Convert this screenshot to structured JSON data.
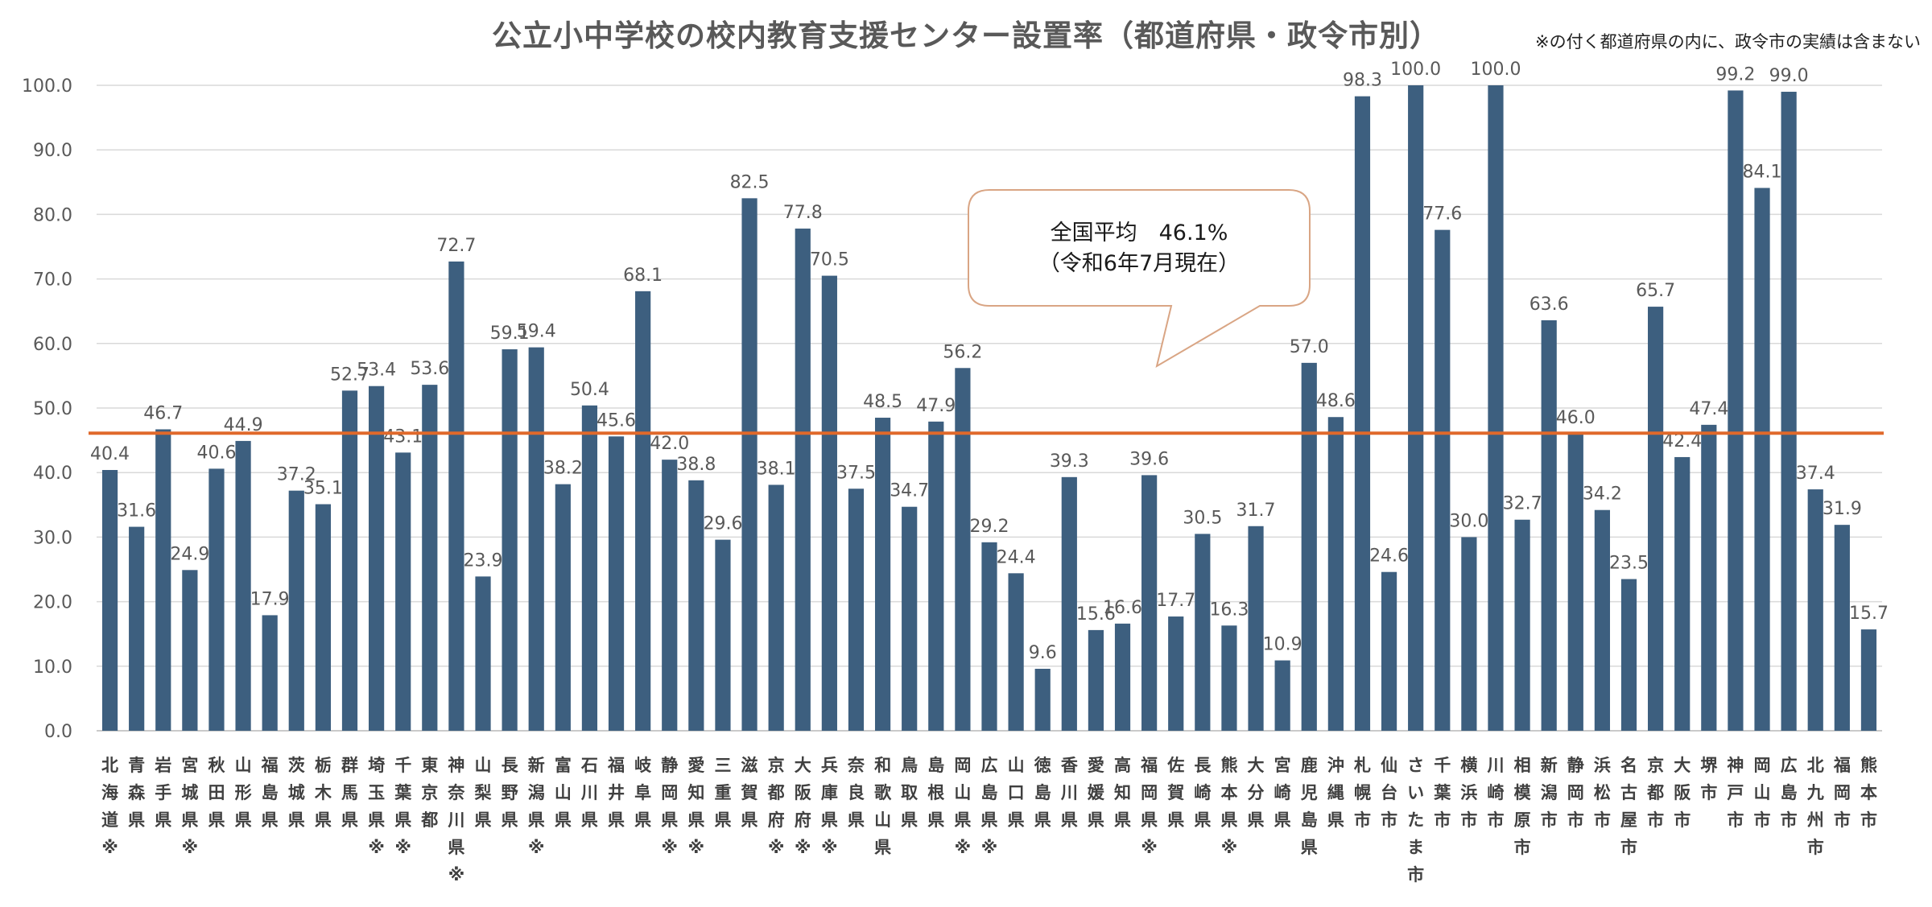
{
  "chart_data": {
    "type": "bar",
    "title": "公立小中学校の校内教育支援センター設置率（都道府県・政令市別）",
    "note": "※の付く都道府県の内に、政令市の実績は含まない",
    "xlabel": "",
    "ylabel": "",
    "ylim": [
      0,
      100
    ],
    "yticks": [
      "0.0",
      "10.0",
      "20.0",
      "30.0",
      "40.0",
      "50.0",
      "60.0",
      "70.0",
      "80.0",
      "90.0",
      "100.0"
    ],
    "grid": true,
    "bar_color": "#3d5f7f",
    "reference_line": {
      "value": 46.1,
      "color": "#e0692b"
    },
    "callout": {
      "line1": "全国平均　46.1%",
      "line2": "（令和6年7月現在）"
    },
    "categories": [
      "北海道※",
      "青森県",
      "岩手県",
      "宮城県※",
      "秋田県",
      "山形県",
      "福島県",
      "茨城県",
      "栃木県",
      "群馬県",
      "埼玉県※",
      "千葉県※",
      "東京都",
      "神奈川県※",
      "山梨県",
      "長野県",
      "新潟県※",
      "富山県",
      "石川県",
      "福井県",
      "岐阜県",
      "静岡県※",
      "愛知県※",
      "三重県",
      "滋賀県",
      "京都府※",
      "大阪府※",
      "兵庫県※",
      "奈良県",
      "和歌山県",
      "鳥取県",
      "島根県",
      "岡山県※",
      "広島県※",
      "山口県",
      "徳島県",
      "香川県",
      "愛媛県",
      "高知県",
      "福岡県※",
      "佐賀県",
      "長崎県",
      "熊本県※",
      "大分県",
      "宮崎県",
      "鹿児島県",
      "沖縄県",
      "札幌市",
      "仙台市",
      "さいたま市",
      "千葉市",
      "横浜市",
      "川崎市",
      "相模原市",
      "新潟市",
      "静岡市",
      "浜松市",
      "名古屋市",
      "京都市",
      "大阪市",
      "堺市",
      "神戸市",
      "岡山市",
      "広島市",
      "北九州市",
      "福岡市",
      "熊本市"
    ],
    "values": [
      40.4,
      31.6,
      46.7,
      24.9,
      40.6,
      44.9,
      17.9,
      37.2,
      35.1,
      52.7,
      53.4,
      43.1,
      53.6,
      72.7,
      23.9,
      59.1,
      59.4,
      38.2,
      50.4,
      45.6,
      68.1,
      42.0,
      38.8,
      29.6,
      82.5,
      38.1,
      77.8,
      70.5,
      37.5,
      48.5,
      34.7,
      47.9,
      56.2,
      29.2,
      24.4,
      9.6,
      39.3,
      15.6,
      16.6,
      39.6,
      17.7,
      30.5,
      16.3,
      31.7,
      10.9,
      57.0,
      48.6,
      98.3,
      24.6,
      100.0,
      77.6,
      30.0,
      100.0,
      32.7,
      63.6,
      46.0,
      34.2,
      23.5,
      65.7,
      42.4,
      47.4,
      99.2,
      84.1,
      99.0,
      37.4,
      31.9,
      15.7
    ],
    "value_labels": [
      "40.4",
      "31.6",
      "46.7",
      "24.9",
      "40.6",
      "44.9",
      "17.9",
      "37.2",
      "35.1",
      "52.7",
      "53.4",
      "43.1",
      "53.6",
      "72.7",
      "23.9",
      "59.1",
      "59.4",
      "38.2",
      "50.4",
      "45.6",
      "68.1",
      "42.0",
      "38.8",
      "29.6",
      "82.5",
      "38.1",
      "77.8",
      "70.5",
      "37.5",
      "48.5",
      "34.7",
      "47.9",
      "56.2",
      "29.2",
      "24.4",
      "9.6",
      "39.3",
      "15.6",
      "16.6",
      "39.6",
      "17.7",
      "30.5",
      "16.3",
      "31.7",
      "10.9",
      "57.0",
      "48.6",
      "98.3",
      "24.6",
      "100.0",
      "77.6",
      "30.0",
      "100.0",
      "32.7",
      "63.6",
      "46.0",
      "34.2",
      "23.5",
      "65.7",
      "42.4",
      "47.4",
      "99.2",
      "84.1",
      "99.0",
      "37.4",
      "31.9",
      "15.7"
    ]
  }
}
